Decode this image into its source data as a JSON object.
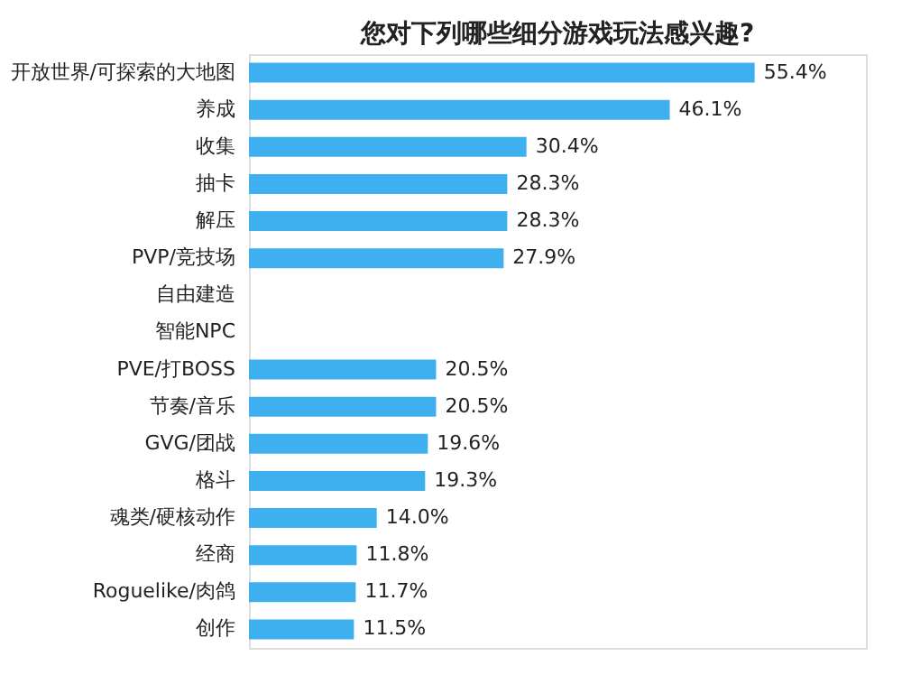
{
  "chart_data": {
    "type": "bar",
    "orientation": "horizontal",
    "title": "您对下列哪些细分游戏玩法感兴趣?",
    "categories": [
      "开放世界/可探索的大地图",
      "养成",
      "收集",
      "抽卡",
      "解压",
      "PVP/竞技场",
      "自由建造",
      "智能NPC",
      "PVE/打BOSS",
      "节奏/音乐",
      "GVG/团战",
      "格斗",
      "魂类/硬核动作",
      "经商",
      "Roguelike/肉鸽",
      "创作"
    ],
    "values": [
      55.4,
      46.1,
      30.4,
      28.3,
      28.3,
      27.9,
      null,
      null,
      20.5,
      20.5,
      19.6,
      19.3,
      14.0,
      11.8,
      11.7,
      11.5
    ],
    "value_labels": [
      "55.4%",
      "46.1%",
      "30.4%",
      "28.3%",
      "28.3%",
      "27.9%",
      null,
      null,
      "20.5%",
      "20.5%",
      "19.6%",
      "19.3%",
      "14.0%",
      "11.8%",
      "11.7%",
      "11.5%"
    ],
    "color": "#3fb0ef"
  }
}
